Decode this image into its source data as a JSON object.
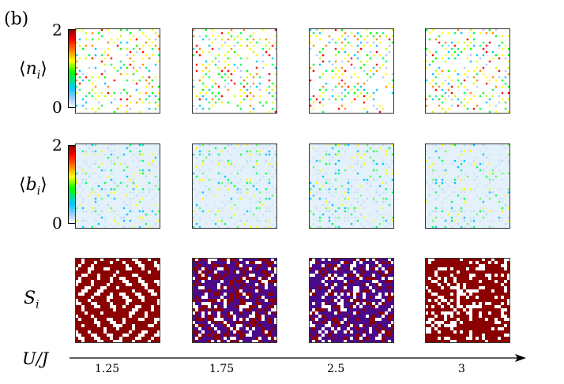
{
  "panel_label": "(b)",
  "rows": [
    {
      "label": "⟨nᵢ⟩",
      "label_main": "n",
      "label_sub": "i",
      "bracketed": true,
      "colorbar": {
        "max": "2",
        "min": "0"
      }
    },
    {
      "label": "⟨bᵢ⟩",
      "label_main": "b",
      "label_sub": "i",
      "bracketed": true,
      "colorbar": {
        "max": "2",
        "min": "0"
      }
    },
    {
      "label": "Sᵢ",
      "label_main": "S",
      "label_sub": "i",
      "bracketed": false
    }
  ],
  "x_axis": {
    "title": "U/J",
    "ticks": [
      "1.25",
      "1.75",
      "2.5",
      "3"
    ]
  },
  "chart_data": {
    "type": "heatmap",
    "xlabel": "U/J",
    "x": [
      1.25,
      1.75,
      2.5,
      3
    ],
    "rows": [
      {
        "quantity": "⟨n_i⟩",
        "color_range": [
          0,
          2
        ],
        "colormap": "jet"
      },
      {
        "quantity": "⟨b_i⟩",
        "color_range": [
          0,
          2
        ],
        "colormap": "jet"
      },
      {
        "quantity": "S_i",
        "colors": [
          "#8b0000",
          "#4b0a8a",
          "#ffffff"
        ]
      }
    ]
  },
  "colors": {
    "s_red": "#8b0000",
    "s_purple": "#4b0a8a"
  }
}
